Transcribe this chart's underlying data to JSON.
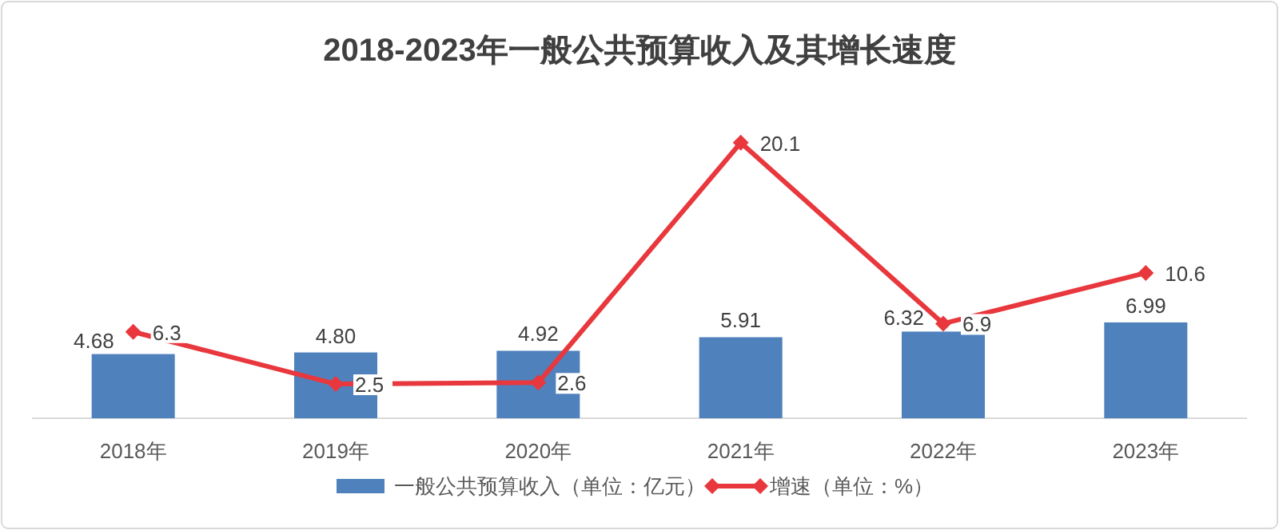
{
  "chart_data": {
    "type": "bar",
    "title": "2018-2023年一般公共预算收入及其增长速度",
    "categories": [
      "2018年",
      "2019年",
      "2020年",
      "2021年",
      "2022年",
      "2023年"
    ],
    "series": [
      {
        "name": "一般公共预算收入（单位：亿元）",
        "color": "#4f81bd",
        "values": [
          4.68,
          4.8,
          4.92,
          5.91,
          6.32,
          6.99
        ],
        "value_labels": [
          "4.68",
          "4.80",
          "4.92",
          "5.91",
          "6.32",
          "6.99"
        ]
      },
      {
        "name": "增速（单位：%）",
        "type": "line",
        "color": "#e8383d",
        "marker": "diamond",
        "values": [
          6.3,
          2.5,
          2.6,
          20.1,
          6.9,
          10.6
        ]
      }
    ],
    "tick_labels": "x",
    "data_labels": true,
    "legend": "bottom"
  }
}
